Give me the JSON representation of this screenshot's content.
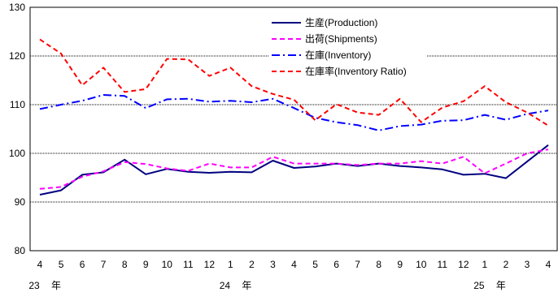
{
  "chart_data": {
    "type": "line",
    "title": "",
    "xlabel": "",
    "ylabel": "",
    "ylim": [
      80,
      130
    ],
    "yticks": [
      80,
      90,
      100,
      110,
      120,
      130
    ],
    "grid": "horizontal dotted",
    "legend_position": "top-center",
    "categories": [
      "4",
      "5",
      "6",
      "7",
      "8",
      "9",
      "10",
      "11",
      "12",
      "1",
      "2",
      "3",
      "4",
      "5",
      "6",
      "7",
      "8",
      "9",
      "10",
      "11",
      "12",
      "1",
      "2",
      "3",
      "4"
    ],
    "year_labels": [
      {
        "number": "23",
        "unit": "年",
        "at_index": 0
      },
      {
        "number": "24",
        "unit": "年",
        "at_index": 9
      },
      {
        "number": "25",
        "unit": "年",
        "at_index": 21
      }
    ],
    "series": [
      {
        "name": "生産(Production)",
        "color": "#000080",
        "dash": "solid",
        "values": [
          91.5,
          92.4,
          95.6,
          96.1,
          98.7,
          95.7,
          96.8,
          96.2,
          96.0,
          96.2,
          96.1,
          98.5,
          97.0,
          97.3,
          97.9,
          97.4,
          97.9,
          97.4,
          97.1,
          96.7,
          95.6,
          95.8,
          94.9,
          98.3,
          101.7
        ]
      },
      {
        "name": "出荷(Shipments)",
        "color": "#ff00ff",
        "dash": "dash",
        "values": [
          92.7,
          93.1,
          95.2,
          96.3,
          98.2,
          97.8,
          96.9,
          96.4,
          97.9,
          97.1,
          97.1,
          99.3,
          97.9,
          97.9,
          97.9,
          97.6,
          97.9,
          97.9,
          98.4,
          97.9,
          99.3,
          95.9,
          97.9,
          100.0,
          100.8
        ]
      },
      {
        "name": "在庫(Inventory)",
        "color": "#0000ff",
        "dash": "dash-dot",
        "values": [
          109.1,
          110.0,
          110.8,
          112.0,
          111.8,
          109.3,
          111.1,
          111.2,
          110.6,
          110.8,
          110.5,
          111.2,
          109.3,
          107.3,
          106.4,
          105.8,
          104.7,
          105.6,
          105.9,
          106.7,
          106.8,
          107.9,
          106.9,
          108.1,
          108.8
        ]
      },
      {
        "name": "在庫率(Inventory Ratio)",
        "color": "#ff0000",
        "dash": "dash",
        "values": [
          123.4,
          120.5,
          114.0,
          117.6,
          112.6,
          113.2,
          119.4,
          119.3,
          115.9,
          117.6,
          113.8,
          112.2,
          111.0,
          106.8,
          110.1,
          108.4,
          107.9,
          111.2,
          106.4,
          109.4,
          110.7,
          113.8,
          110.5,
          108.4,
          105.7
        ]
      }
    ]
  }
}
